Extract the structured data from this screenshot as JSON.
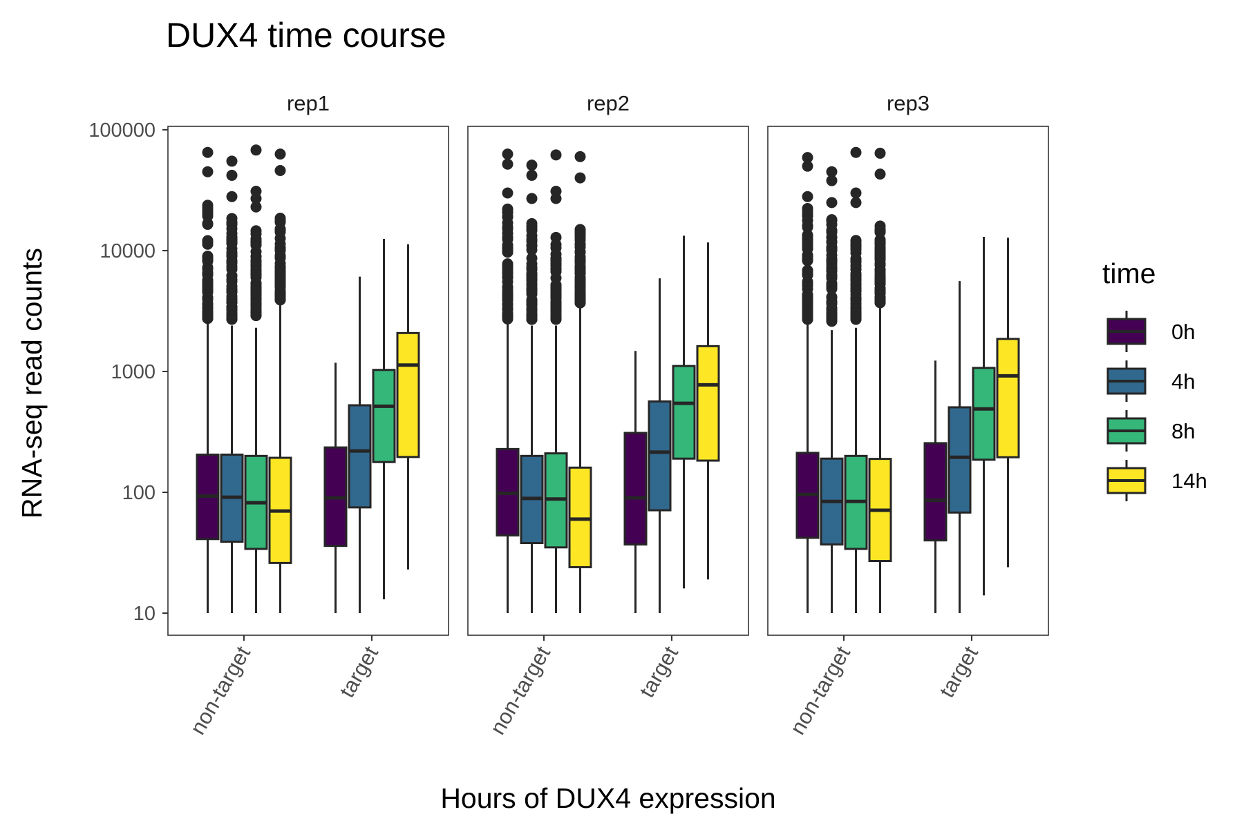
{
  "chart_data": {
    "type": "boxplot",
    "title": "DUX4 time course",
    "xlabel": "Hours of DUX4 expression",
    "ylabel": "RNA-seq read counts",
    "y_scale": "log10",
    "ylim": [
      10,
      100000
    ],
    "y_ticks": [
      "10",
      "100",
      "1000",
      "10000",
      "100000"
    ],
    "y_tick_values": [
      10,
      100,
      1000,
      10000,
      100000
    ],
    "categories": [
      "non-target",
      "target"
    ],
    "grid": false,
    "legend": {
      "title": "time",
      "position": "right",
      "entries": [
        {
          "label": "0h",
          "color": "#440154"
        },
        {
          "label": "4h",
          "color": "#31688E"
        },
        {
          "label": "8h",
          "color": "#35B779"
        },
        {
          "label": "14h",
          "color": "#FDE725"
        }
      ]
    },
    "box_outline_color": "#262626",
    "facets": [
      {
        "label": "rep1",
        "groups": [
          {
            "category": "non-target",
            "boxes": [
              {
                "time": "0h",
                "lower_whisker": 10,
                "q1": 41,
                "median": 93,
                "q3": 205,
                "upper_whisker": 2500,
                "outliers_range": [
                  2700,
                  25000
                ],
                "extreme_outliers": [
                  45000,
                  65000
                ]
              },
              {
                "time": "4h",
                "lower_whisker": 10,
                "q1": 39,
                "median": 91,
                "q3": 205,
                "upper_whisker": 2400,
                "outliers_range": [
                  2700,
                  19000
                ],
                "extreme_outliers": [
                  28000,
                  42000,
                  55000
                ]
              },
              {
                "time": "8h",
                "lower_whisker": 10,
                "q1": 34,
                "median": 82,
                "q3": 200,
                "upper_whisker": 2300,
                "outliers_range": [
                  2900,
                  15000
                ],
                "extreme_outliers": [
                  23000,
                  27000,
                  31000,
                  68000
                ]
              },
              {
                "time": "14h",
                "lower_whisker": 10,
                "q1": 26,
                "median": 70,
                "q3": 193,
                "upper_whisker": 3600,
                "outliers_range": [
                  3900,
                  19000
                ],
                "extreme_outliers": [
                  46000,
                  63000
                ]
              }
            ]
          },
          {
            "category": "target",
            "boxes": [
              {
                "time": "0h",
                "lower_whisker": 10,
                "q1": 36,
                "median": 90,
                "q3": 235,
                "upper_whisker": 1180,
                "outliers_range": null,
                "extreme_outliers": []
              },
              {
                "time": "4h",
                "lower_whisker": 10,
                "q1": 75,
                "median": 220,
                "q3": 525,
                "upper_whisker": 6100,
                "outliers_range": null,
                "extreme_outliers": []
              },
              {
                "time": "8h",
                "lower_whisker": 13,
                "q1": 178,
                "median": 515,
                "q3": 1030,
                "upper_whisker": 12500,
                "outliers_range": null,
                "extreme_outliers": []
              },
              {
                "time": "14h",
                "lower_whisker": 23,
                "q1": 196,
                "median": 1130,
                "q3": 2080,
                "upper_whisker": 11300,
                "outliers_range": null,
                "extreme_outliers": []
              }
            ]
          }
        ]
      },
      {
        "label": "rep2",
        "groups": [
          {
            "category": "non-target",
            "boxes": [
              {
                "time": "0h",
                "lower_whisker": 10,
                "q1": 44,
                "median": 98,
                "q3": 228,
                "upper_whisker": 2500,
                "outliers_range": [
                  2700,
                  25000
                ],
                "extreme_outliers": [
                  30000,
                  52000,
                  63000
                ]
              },
              {
                "time": "4h",
                "lower_whisker": 10,
                "q1": 38,
                "median": 89,
                "q3": 200,
                "upper_whisker": 2400,
                "outliers_range": [
                  2700,
                  17000
                ],
                "extreme_outliers": [
                  27000,
                  42000,
                  51000
                ]
              },
              {
                "time": "8h",
                "lower_whisker": 10,
                "q1": 35,
                "median": 88,
                "q3": 210,
                "upper_whisker": 2400,
                "outliers_range": [
                  2700,
                  15000
                ],
                "extreme_outliers": [
                  27000,
                  31000,
                  62000
                ]
              },
              {
                "time": "14h",
                "lower_whisker": 10,
                "q1": 24,
                "median": 60,
                "q3": 160,
                "upper_whisker": 3400,
                "outliers_range": [
                  3700,
                  15000
                ],
                "extreme_outliers": [
                  40000,
                  60000
                ]
              }
            ]
          },
          {
            "category": "target",
            "boxes": [
              {
                "time": "0h",
                "lower_whisker": 10,
                "q1": 37,
                "median": 90,
                "q3": 310,
                "upper_whisker": 1480,
                "outliers_range": null,
                "extreme_outliers": []
              },
              {
                "time": "4h",
                "lower_whisker": 10,
                "q1": 71,
                "median": 215,
                "q3": 565,
                "upper_whisker": 5900,
                "outliers_range": null,
                "extreme_outliers": []
              },
              {
                "time": "8h",
                "lower_whisker": 16,
                "q1": 190,
                "median": 545,
                "q3": 1110,
                "upper_whisker": 13300,
                "outliers_range": null,
                "extreme_outliers": []
              },
              {
                "time": "14h",
                "lower_whisker": 19,
                "q1": 183,
                "median": 775,
                "q3": 1620,
                "upper_whisker": 11700,
                "outliers_range": null,
                "extreme_outliers": []
              }
            ]
          }
        ]
      },
      {
        "label": "rep3",
        "groups": [
          {
            "category": "non-target",
            "boxes": [
              {
                "time": "0h",
                "lower_whisker": 10,
                "q1": 42,
                "median": 96,
                "q3": 212,
                "upper_whisker": 2500,
                "outliers_range": [
                  2700,
                  23000
                ],
                "extreme_outliers": [
                  28000,
                  50000,
                  59000
                ]
              },
              {
                "time": "4h",
                "lower_whisker": 10,
                "q1": 37,
                "median": 84,
                "q3": 190,
                "upper_whisker": 2200,
                "outliers_range": [
                  2600,
                  19000
                ],
                "extreme_outliers": [
                  25000,
                  38000,
                  45000
                ]
              },
              {
                "time": "8h",
                "lower_whisker": 10,
                "q1": 34,
                "median": 84,
                "q3": 200,
                "upper_whisker": 2300,
                "outliers_range": [
                  2700,
                  13000
                ],
                "extreme_outliers": [
                  25000,
                  30000,
                  65000
                ]
              },
              {
                "time": "14h",
                "lower_whisker": 10,
                "q1": 27,
                "median": 71,
                "q3": 189,
                "upper_whisker": 3400,
                "outliers_range": [
                  3700,
                  17000
                ],
                "extreme_outliers": [
                  43000,
                  64000
                ]
              }
            ]
          },
          {
            "category": "target",
            "boxes": [
              {
                "time": "0h",
                "lower_whisker": 10,
                "q1": 40,
                "median": 86,
                "q3": 255,
                "upper_whisker": 1230,
                "outliers_range": null,
                "extreme_outliers": []
              },
              {
                "time": "4h",
                "lower_whisker": 10,
                "q1": 68,
                "median": 195,
                "q3": 505,
                "upper_whisker": 5600,
                "outliers_range": null,
                "extreme_outliers": []
              },
              {
                "time": "8h",
                "lower_whisker": 14,
                "q1": 186,
                "median": 490,
                "q3": 1070,
                "upper_whisker": 13000,
                "outliers_range": null,
                "extreme_outliers": []
              },
              {
                "time": "14h",
                "lower_whisker": 24,
                "q1": 195,
                "median": 920,
                "q3": 1860,
                "upper_whisker": 12800,
                "outliers_range": null,
                "extreme_outliers": []
              }
            ]
          }
        ]
      }
    ]
  }
}
